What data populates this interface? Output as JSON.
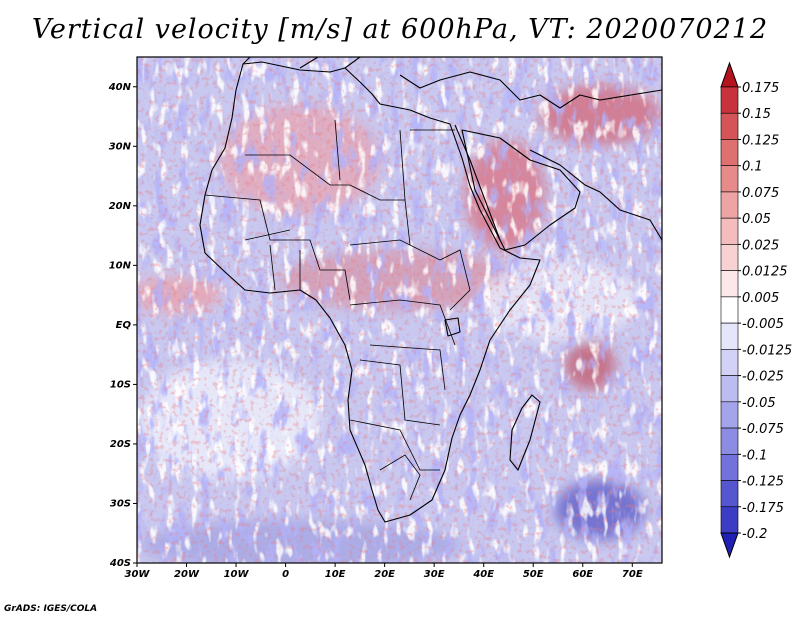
{
  "title": "Vertical velocity [m/s] at 600hPa, VT: 2020070212",
  "credit": "GrADS: IGES/COLA",
  "map": {
    "lon_range": [
      -30,
      76
    ],
    "lat_range": [
      -40,
      45
    ],
    "lat_labels": [
      {
        "lat": 40,
        "text": "40N"
      },
      {
        "lat": 30,
        "text": "30N"
      },
      {
        "lat": 20,
        "text": "20N"
      },
      {
        "lat": 10,
        "text": "10N"
      },
      {
        "lat": 0,
        "text": "EQ"
      },
      {
        "lat": -10,
        "text": "10S"
      },
      {
        "lat": -20,
        "text": "20S"
      },
      {
        "lat": -30,
        "text": "30S"
      },
      {
        "lat": -40,
        "text": "40S"
      }
    ],
    "lon_labels": [
      {
        "lon": -30,
        "text": "30W"
      },
      {
        "lon": -20,
        "text": "20W"
      },
      {
        "lon": -10,
        "text": "10W"
      },
      {
        "lon": 0,
        "text": "0"
      },
      {
        "lon": 10,
        "text": "10E"
      },
      {
        "lon": 20,
        "text": "20E"
      },
      {
        "lon": 30,
        "text": "30E"
      },
      {
        "lon": 40,
        "text": "40E"
      },
      {
        "lon": 50,
        "text": "50E"
      },
      {
        "lon": 60,
        "text": "60E"
      },
      {
        "lon": 70,
        "text": "70E"
      }
    ]
  },
  "colorbar": {
    "labels": [
      "0.175",
      "0.15",
      "0.125",
      "0.1",
      "0.075",
      "0.05",
      "0.025",
      "0.0125",
      "0.005",
      "-0.005",
      "-0.0125",
      "-0.025",
      "-0.05",
      "-0.075",
      "-0.1",
      "-0.125",
      "-0.175",
      "-0.2"
    ],
    "colors": [
      "#b4141e",
      "#c8323a",
      "#d45458",
      "#de7070",
      "#e68a8a",
      "#eea4a4",
      "#f4bcbc",
      "#f8d2d2",
      "#fce8e8",
      "#ffffff",
      "#e6e6fa",
      "#d2d2f6",
      "#bcbcf0",
      "#a4a4ea",
      "#8c8ce2",
      "#7272da",
      "#5656d0",
      "#3c3cc4",
      "#2020b4"
    ]
  }
}
